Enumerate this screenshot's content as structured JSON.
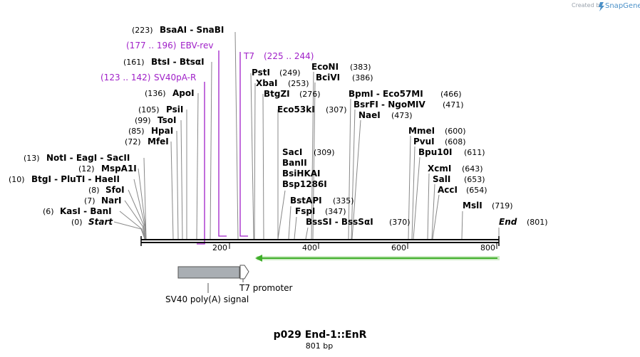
{
  "credit": {
    "prefix": "Created by",
    "brand": "SnapGene"
  },
  "title": "p029 End-1::EnR",
  "length": "801 bp",
  "ticks": [
    "200",
    "400",
    "600",
    "800"
  ],
  "enzymes": [
    {
      "pos": "(0)",
      "name": "Start"
    },
    {
      "pos": "(6)",
      "name": "KasI  - BanI"
    },
    {
      "pos": "(7)",
      "name": "NarI"
    },
    {
      "pos": "(8)",
      "name": "SfoI"
    },
    {
      "pos": "(10)",
      "name": "BtgI  - PluTI  - HaeII"
    },
    {
      "pos": "(12)",
      "name": "MspA1I"
    },
    {
      "pos": "(13)",
      "name": "NotI  - EagI  - SacII"
    },
    {
      "pos": "(72)",
      "name": "MfeI"
    },
    {
      "pos": "(85)",
      "name": "HpaI"
    },
    {
      "pos": "(99)",
      "name": "TsoI"
    },
    {
      "pos": "(105)",
      "name": "PsiI"
    },
    {
      "pos": "(136)",
      "name": "ApoI"
    },
    {
      "pos": "(161)",
      "name": "BtsI  - BtsαI"
    },
    {
      "pos": "(223)",
      "name": "BsaAI  - SnaBI"
    },
    {
      "pos": "(249)",
      "name": "PstI"
    },
    {
      "pos": "(253)",
      "name": "XbaI"
    },
    {
      "pos": "(276)",
      "name": "BtgZI"
    },
    {
      "pos": "(307)",
      "name": "Eco53kI"
    },
    {
      "pos": "(383)",
      "name": "EcoNI"
    },
    {
      "pos": "(386)",
      "name": "BciVI"
    },
    {
      "pos": "(309)",
      "name": "SacI"
    },
    {
      "pos": "",
      "name": "BanII"
    },
    {
      "pos": "",
      "name": "BsiHKAI"
    },
    {
      "pos": "",
      "name": "Bsp1286I"
    },
    {
      "pos": "(335)",
      "name": "BstAPI"
    },
    {
      "pos": "(347)",
      "name": "FspI"
    },
    {
      "pos": "(370)",
      "name": "BssSI  - BssSαI"
    },
    {
      "pos": "(466)",
      "name": "BpmI  - Eco57MI"
    },
    {
      "pos": "(471)",
      "name": "BsrFI  - NgoMIV"
    },
    {
      "pos": "(473)",
      "name": "NaeI"
    },
    {
      "pos": "(600)",
      "name": "MmeI"
    },
    {
      "pos": "(608)",
      "name": "PvuI"
    },
    {
      "pos": "(611)",
      "name": "Bpu10I"
    },
    {
      "pos": "(643)",
      "name": "XcmI"
    },
    {
      "pos": "(653)",
      "name": "SalI"
    },
    {
      "pos": "(654)",
      "name": "AccI"
    },
    {
      "pos": "(719)",
      "name": "MslI"
    },
    {
      "pos": "(801)",
      "name": "End"
    }
  ],
  "primers": [
    {
      "range": "(177 .. 196)",
      "name": "EBV-rev"
    },
    {
      "range": "(225 .. 244)",
      "name": "T7"
    },
    {
      "range": "(123 .. 142)",
      "name": "SV40pA-R"
    }
  ],
  "features": {
    "polyA": "SV40 poly(A) signal",
    "t7": "T7 promoter"
  },
  "colors": {
    "primer": "#a020c8",
    "orf": "#3fae2a",
    "feature": "#a9aeb3"
  }
}
